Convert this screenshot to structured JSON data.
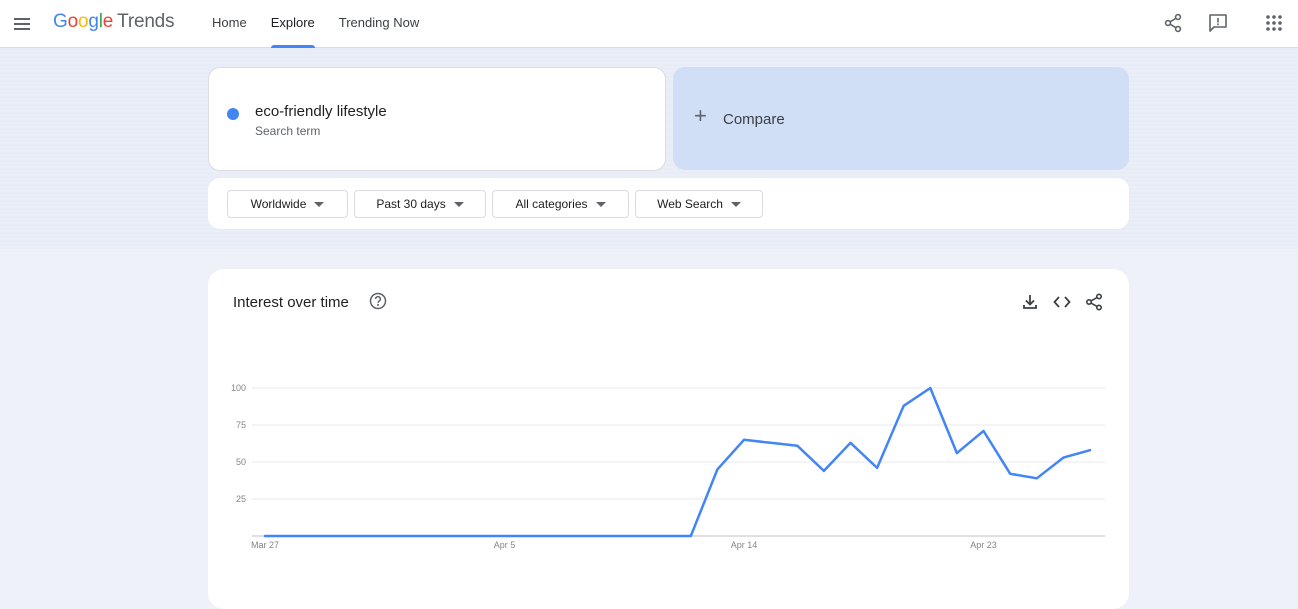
{
  "header": {
    "logo": {
      "g1": "G",
      "o1": "o",
      "o2": "o",
      "g2": "g",
      "l": "l",
      "e": "e",
      "product": "Trends"
    },
    "nav": [
      {
        "label": "Home"
      },
      {
        "label": "Explore"
      },
      {
        "label": "Trending Now"
      }
    ],
    "active_nav": "Explore",
    "icons": [
      "menu-icon",
      "share-icon",
      "feedback-icon",
      "apps-icon"
    ]
  },
  "search": {
    "term": "eco-friendly lifestyle",
    "term_subtitle": "Search term",
    "term_color": "#4285f4",
    "compare_label": "Compare"
  },
  "filters": [
    {
      "label": "Worldwide"
    },
    {
      "label": "Past 30 days"
    },
    {
      "label": "All categories"
    },
    {
      "label": "Web Search"
    }
  ],
  "chart_card": {
    "title": "Interest over time",
    "icons": [
      "help-icon",
      "download-icon",
      "embed-icon",
      "share-icon"
    ]
  },
  "chart_data": {
    "type": "line",
    "title": "",
    "xlabel": "",
    "ylabel": "",
    "x_ticks": [
      "Mar 27",
      "Apr 5",
      "Apr 14",
      "Apr 23"
    ],
    "y_ticks": [
      "100",
      "75",
      "50",
      "25"
    ],
    "ylim": [
      0,
      100
    ],
    "grid": true,
    "series": [
      {
        "color": "#4285f4",
        "x": [
          "Mar 27",
          "Mar 28",
          "Mar 29",
          "Mar 30",
          "Mar 31",
          "Apr 1",
          "Apr 2",
          "Apr 3",
          "Apr 4",
          "Apr 5",
          "Apr 6",
          "Apr 7",
          "Apr 8",
          "Apr 9",
          "Apr 10",
          "Apr 11",
          "Apr 12",
          "Apr 13",
          "Apr 14",
          "Apr 15",
          "Apr 16",
          "Apr 17",
          "Apr 18",
          "Apr 19",
          "Apr 20",
          "Apr 21",
          "Apr 22",
          "Apr 23",
          "Apr 24",
          "Apr 25",
          "Apr 26",
          "Apr 27"
        ],
        "values": [
          0,
          0,
          0,
          0,
          0,
          0,
          0,
          0,
          0,
          0,
          0,
          0,
          0,
          0,
          0,
          0,
          0,
          45,
          65,
          63,
          61,
          44,
          63,
          46,
          88,
          100,
          56,
          71,
          42,
          39,
          53,
          58
        ]
      }
    ]
  }
}
